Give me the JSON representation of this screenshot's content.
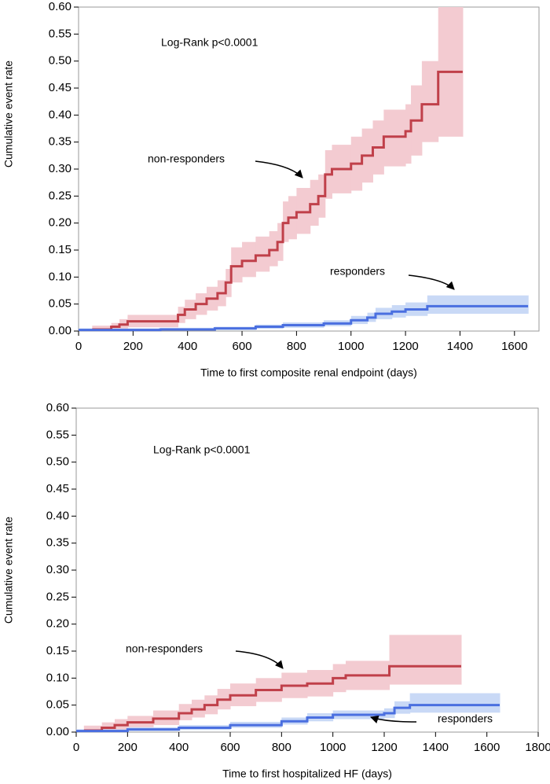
{
  "chart_data": [
    {
      "type": "step",
      "xlabel": "Time to first composite renal endpoint (days)",
      "ylabel": "Cumulative event rate",
      "annotations": [
        "Log-Rank p<0.0001"
      ],
      "xlim": [
        0,
        1690
      ],
      "ylim": [
        0,
        0.6
      ],
      "xticks": [
        0,
        200,
        400,
        600,
        800,
        1000,
        1200,
        1400,
        1600
      ],
      "yticks": [
        {
          "value": 0,
          "label": "0.00"
        },
        {
          "value": 0.05,
          "label": "0.05"
        },
        {
          "value": 0.1,
          "label": "0.10"
        },
        {
          "value": 0.15,
          "label": "0.15"
        },
        {
          "value": 0.2,
          "label": "0.20"
        },
        {
          "value": 0.25,
          "label": "0.25"
        },
        {
          "value": 0.3,
          "label": "0.30"
        },
        {
          "value": 0.35,
          "label": "0.35"
        },
        {
          "value": 0.4,
          "label": "0.40"
        },
        {
          "value": 0.45,
          "label": "0.45"
        },
        {
          "value": 0.5,
          "label": "0.50"
        },
        {
          "value": 0.55,
          "label": "0.55"
        },
        {
          "value": 0.6,
          "label": "0.60"
        }
      ],
      "series": [
        {
          "name": "non-responders",
          "color": "#c0404a",
          "band_color": "#f3cbd1",
          "x": [
            50,
            120,
            150,
            180,
            365,
            390,
            430,
            470,
            510,
            540,
            560,
            600,
            650,
            700,
            730,
            750,
            770,
            800,
            850,
            880,
            905,
            930,
            1000,
            1040,
            1080,
            1120,
            1200,
            1220,
            1260,
            1320,
            1410
          ],
          "values": [
            0.003,
            0.008,
            0.012,
            0.018,
            0.03,
            0.04,
            0.05,
            0.06,
            0.07,
            0.09,
            0.12,
            0.13,
            0.14,
            0.15,
            0.165,
            0.2,
            0.21,
            0.22,
            0.235,
            0.25,
            0.29,
            0.3,
            0.31,
            0.325,
            0.34,
            0.36,
            0.37,
            0.39,
            0.42,
            0.48,
            0.48
          ],
          "lower": [
            0,
            0.001,
            0.003,
            0.007,
            0.015,
            0.022,
            0.03,
            0.038,
            0.046,
            0.063,
            0.09,
            0.1,
            0.11,
            0.12,
            0.13,
            0.165,
            0.17,
            0.18,
            0.195,
            0.21,
            0.245,
            0.255,
            0.26,
            0.275,
            0.29,
            0.305,
            0.31,
            0.325,
            0.35,
            0.36,
            0.36
          ],
          "upper": [
            0.01,
            0.015,
            0.022,
            0.03,
            0.045,
            0.058,
            0.07,
            0.082,
            0.094,
            0.115,
            0.155,
            0.165,
            0.175,
            0.185,
            0.2,
            0.24,
            0.25,
            0.265,
            0.28,
            0.29,
            0.335,
            0.345,
            0.36,
            0.375,
            0.39,
            0.41,
            0.42,
            0.455,
            0.5,
            0.6,
            0.6
          ]
        },
        {
          "name": "responders",
          "color": "#4a6fe0",
          "band_color": "#c9d9f6",
          "x": [
            0,
            300,
            500,
            650,
            750,
            900,
            1000,
            1060,
            1090,
            1150,
            1200,
            1280,
            1650
          ],
          "values": [
            0.002,
            0.003,
            0.005,
            0.008,
            0.011,
            0.014,
            0.02,
            0.025,
            0.032,
            0.036,
            0.04,
            0.046,
            0.046
          ],
          "lower": [
            0,
            0.001,
            0.002,
            0.004,
            0.006,
            0.009,
            0.013,
            0.017,
            0.022,
            0.025,
            0.028,
            0.032,
            0.032
          ],
          "upper": [
            0.005,
            0.006,
            0.008,
            0.012,
            0.016,
            0.02,
            0.028,
            0.034,
            0.043,
            0.048,
            0.053,
            0.066,
            0.066
          ]
        }
      ]
    },
    {
      "type": "step",
      "xlabel": "Time to first hospitalized HF (days)",
      "ylabel": "Cumulative event rate",
      "annotations": [
        "Log-Rank p<0.0001"
      ],
      "xlim": [
        0,
        1800
      ],
      "ylim": [
        0,
        0.6
      ],
      "xticks": [
        0,
        200,
        400,
        600,
        800,
        1000,
        1200,
        1400,
        1600,
        1800
      ],
      "yticks": [
        {
          "value": 0,
          "label": "0.00"
        },
        {
          "value": 0.05,
          "label": "0.05"
        },
        {
          "value": 0.1,
          "label": "0.10"
        },
        {
          "value": 0.15,
          "label": "0.15"
        },
        {
          "value": 0.2,
          "label": "0.20"
        },
        {
          "value": 0.25,
          "label": "0.25"
        },
        {
          "value": 0.3,
          "label": "0.30"
        },
        {
          "value": 0.35,
          "label": "0.35"
        },
        {
          "value": 0.4,
          "label": "0.40"
        },
        {
          "value": 0.45,
          "label": "0.45"
        },
        {
          "value": 0.5,
          "label": "0.50"
        },
        {
          "value": 0.55,
          "label": "0.55"
        },
        {
          "value": 0.6,
          "label": "0.60"
        }
      ],
      "series": [
        {
          "name": "non-responders",
          "color": "#c0404a",
          "band_color": "#f3cbd1",
          "x": [
            30,
            100,
            150,
            200,
            300,
            400,
            450,
            500,
            550,
            600,
            700,
            800,
            900,
            1000,
            1050,
            1220,
            1500
          ],
          "values": [
            0.003,
            0.008,
            0.013,
            0.018,
            0.025,
            0.035,
            0.042,
            0.05,
            0.06,
            0.068,
            0.078,
            0.086,
            0.09,
            0.1,
            0.105,
            0.122,
            0.122
          ],
          "lower": [
            0,
            0.002,
            0.005,
            0.008,
            0.013,
            0.022,
            0.027,
            0.033,
            0.042,
            0.048,
            0.056,
            0.063,
            0.066,
            0.074,
            0.078,
            0.088,
            0.088
          ],
          "upper": [
            0.012,
            0.018,
            0.024,
            0.03,
            0.04,
            0.052,
            0.06,
            0.068,
            0.08,
            0.09,
            0.1,
            0.11,
            0.115,
            0.126,
            0.132,
            0.18,
            0.18
          ]
        },
        {
          "name": "responders",
          "color": "#4a6fe0",
          "band_color": "#c9d9f6",
          "x": [
            0,
            200,
            400,
            600,
            800,
            900,
            1000,
            1200,
            1240,
            1300,
            1650
          ],
          "values": [
            0.002,
            0.005,
            0.008,
            0.013,
            0.02,
            0.027,
            0.032,
            0.035,
            0.045,
            0.05,
            0.05
          ],
          "lower": [
            0,
            0.002,
            0.004,
            0.008,
            0.014,
            0.02,
            0.024,
            0.026,
            0.034,
            0.036,
            0.036
          ],
          "upper": [
            0.005,
            0.009,
            0.013,
            0.019,
            0.027,
            0.035,
            0.04,
            0.044,
            0.057,
            0.072,
            0.072
          ]
        }
      ]
    }
  ]
}
